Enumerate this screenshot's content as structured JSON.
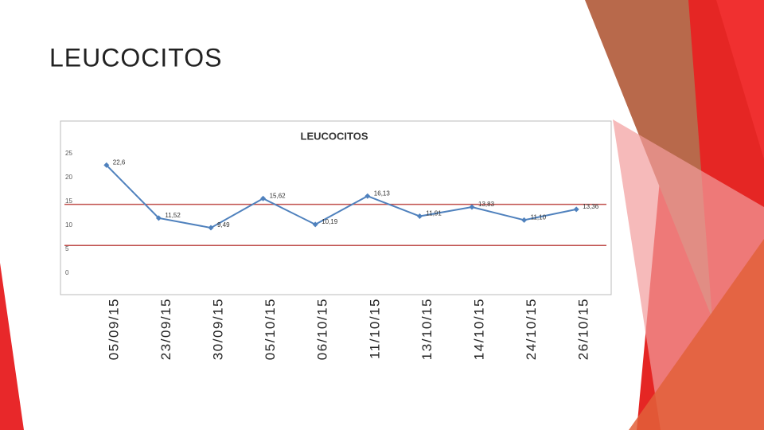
{
  "slide": {
    "title": "LEUCOCITOS"
  },
  "chart_data": {
    "type": "line",
    "title": "LEUCOCITOS",
    "categories": [
      "05/09/15",
      "23/09/15",
      "30/09/15",
      "05/10/15",
      "06/10/15",
      "11/10/15",
      "13/10/15",
      "14/10/15",
      "24/10/15",
      "26/10/15"
    ],
    "values": [
      22.6,
      11.52,
      9.49,
      15.62,
      10.19,
      16.13,
      11.91,
      13.83,
      11.1,
      13.36
    ],
    "value_labels": [
      "22,6",
      "11,52",
      "9,49",
      "15,62",
      "10,19",
      "16,13",
      "11,91",
      "13,83",
      "11,10",
      "13,36"
    ],
    "color": "#4f81bd",
    "ylim": [
      0,
      25
    ],
    "yticks": [
      0,
      5,
      10,
      15,
      20,
      25
    ],
    "grid": false,
    "reference_lines": [
      {
        "value": 14.4,
        "color": "#c0504d"
      },
      {
        "value": 5.8,
        "color": "#c0504d"
      }
    ]
  }
}
